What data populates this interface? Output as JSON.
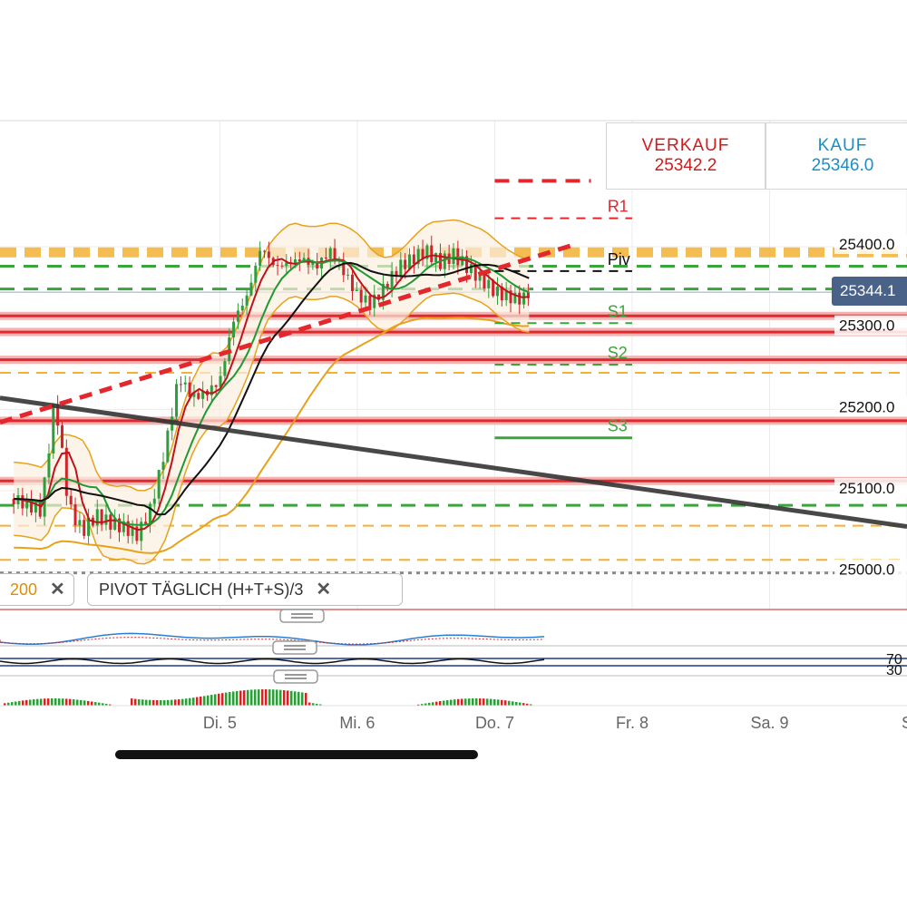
{
  "quotes": {
    "sell": {
      "label": "VERKAUF",
      "value": "25342.2"
    },
    "buy": {
      "label": "KAUF",
      "value": "25346.0"
    }
  },
  "current_price": "25344.1",
  "legend": {
    "chip_ma": "200",
    "chip_pivot": "PIVOT  TÄGLICH  (H+T+S)/3",
    "close_glyph": "✕"
  },
  "colors": {
    "resistance": "#e2282d",
    "support": "#3aa53a",
    "fib": "#f2b233",
    "trend": "#353535",
    "price_tag": "#4a6188"
  },
  "chart_data": {
    "type": "candlestick",
    "instrument_quotes": {
      "sell": 25342.2,
      "buy": 25346.0
    },
    "y_axis": {
      "ticks": [
        25000,
        25100,
        25200,
        25300,
        25400
      ],
      "tick_labels": [
        "25000.0",
        "25100.0",
        "25200.0",
        "25300.0",
        "25400.0"
      ],
      "range": [
        24945,
        25555
      ]
    },
    "x_axis": {
      "tick_labels": [
        "Di. 5",
        "Mi. 6",
        "Do. 7",
        "Fr. 8",
        "Sa. 9",
        "S"
      ],
      "range": [
        -1.6,
        5.0
      ]
    },
    "pivot_levels": [
      {
        "name": "R1",
        "value": 25435
      },
      {
        "name": "Piv",
        "value": 25370
      },
      {
        "name": "S1",
        "value": 25306
      },
      {
        "name": "S2",
        "value": 25255
      },
      {
        "name": "S3",
        "value": 25165
      }
    ],
    "horizontal_lines": {
      "red_solid": [
        25315,
        25295,
        25261,
        25186,
        25112
      ],
      "green_dashed": [
        25376,
        25348,
        25082
      ],
      "orange_dashed_thick": [
        25393
      ],
      "orange_dashed_thin": [
        25245,
        25057,
        25015
      ],
      "gray_dotted": [
        24999
      ],
      "red_dashed_top": [
        25481
      ]
    },
    "trendlines": [
      {
        "style": "black",
        "x": [
          -1.6,
          5.0
        ],
        "y": [
          25214,
          25056
        ]
      },
      {
        "style": "red-dashed",
        "x": [
          -1.6,
          2.55
        ],
        "y": [
          25184,
          25401
        ]
      }
    ],
    "price_series": {
      "x": [
        -1.5,
        -1.3,
        -1.2,
        -1.1,
        -1.0,
        -0.9,
        -0.8,
        -0.7,
        -0.6,
        -0.5,
        -0.4,
        -0.3,
        -0.2,
        -0.1,
        0.0,
        0.1,
        0.2,
        0.3,
        0.4,
        0.5,
        0.6,
        0.7,
        0.8,
        0.9,
        1.0,
        1.1,
        1.2,
        1.3,
        1.4,
        1.5,
        1.6,
        1.7,
        1.8,
        1.9,
        2.0,
        2.1,
        2.2,
        2.25
      ],
      "close": [
        25090,
        25075,
        25215,
        25080,
        25050,
        25070,
        25060,
        25055,
        25045,
        25080,
        25150,
        25240,
        25215,
        25220,
        25235,
        25310,
        25340,
        25400,
        25375,
        25380,
        25385,
        25375,
        25395,
        25370,
        25340,
        25330,
        25350,
        25375,
        25385,
        25395,
        25380,
        25390,
        25375,
        25360,
        25345,
        25338,
        25335,
        25344
      ]
    }
  }
}
